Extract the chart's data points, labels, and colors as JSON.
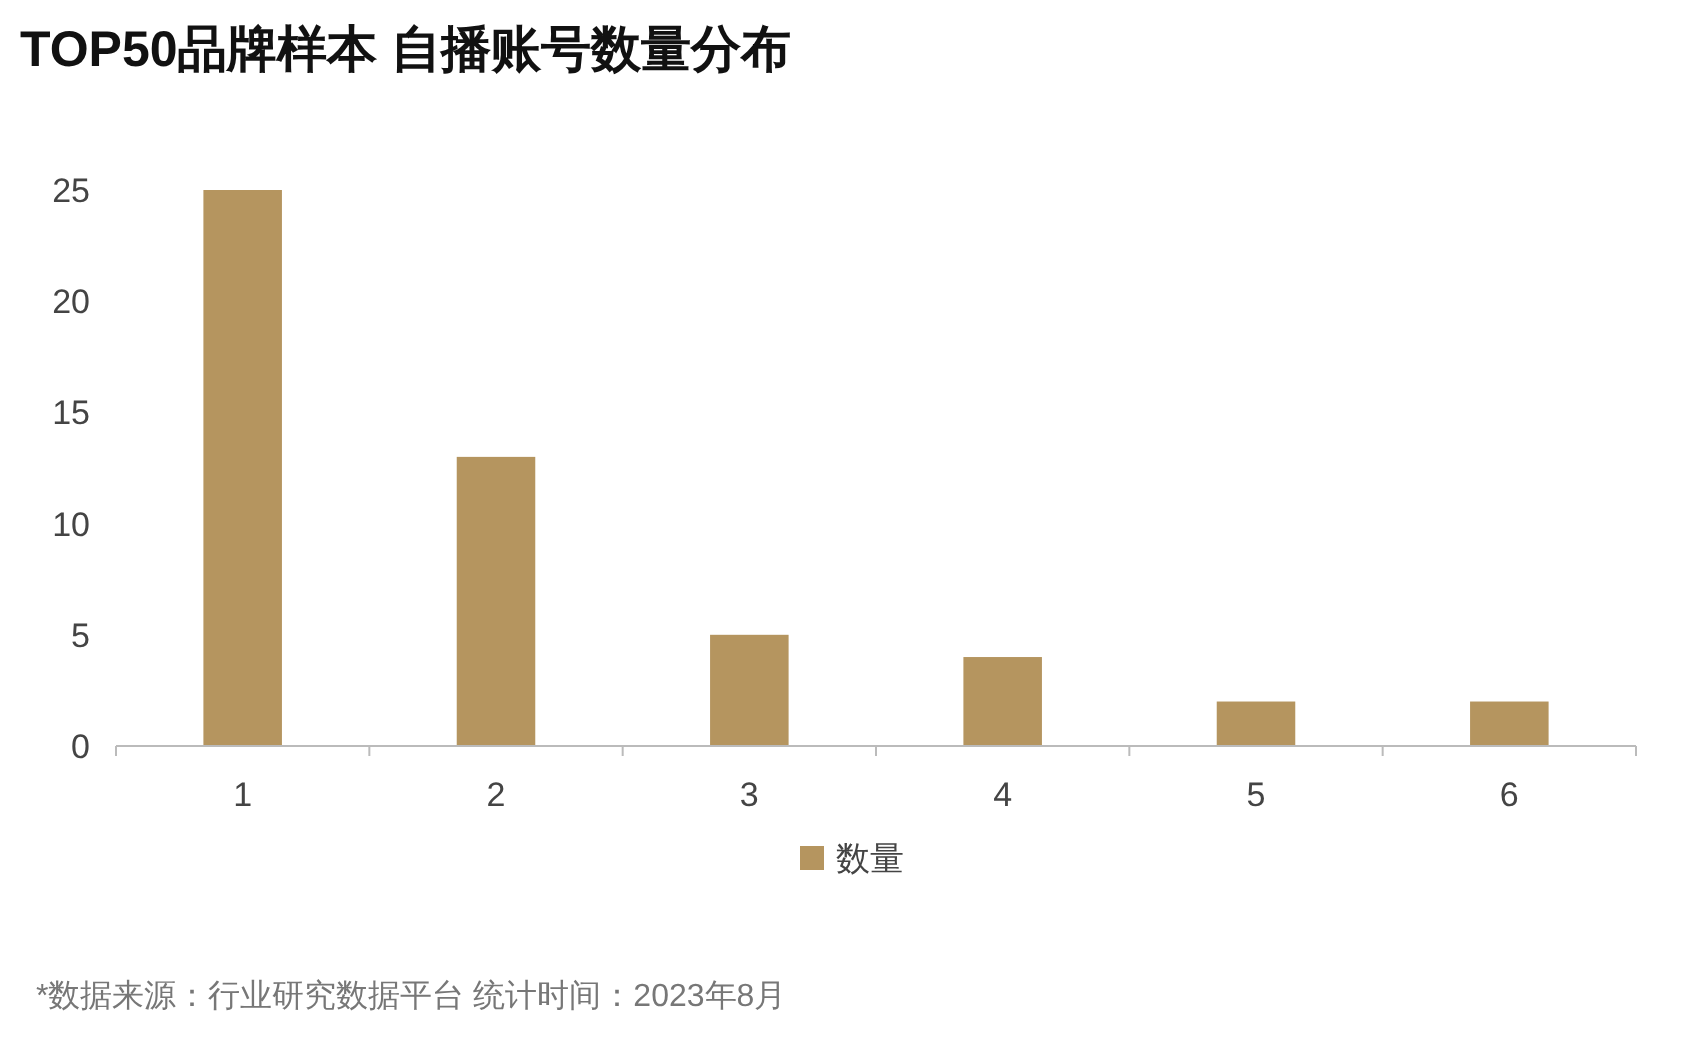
{
  "chart_data": {
    "type": "bar",
    "title": "TOP50品牌样本 自播账号数量分布",
    "categories": [
      "1",
      "2",
      "3",
      "4",
      "5",
      "6"
    ],
    "series": [
      {
        "name": "数量",
        "color": "#b5955f",
        "values": [
          25,
          13,
          5,
          4,
          2,
          2
        ]
      }
    ],
    "ylim": [
      0,
      25
    ],
    "yticks": [
      0,
      5,
      10,
      15,
      20,
      25
    ],
    "grid": false,
    "legend": "bottom",
    "annotations": [
      "*数据来源：行业研究数据平台 统计时间：2023年8月"
    ]
  }
}
